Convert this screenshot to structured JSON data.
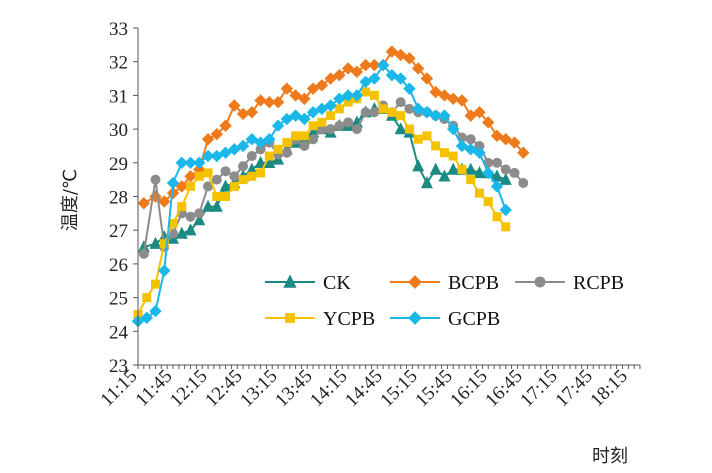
{
  "chart_data": {
    "type": "line",
    "xlabel": "时刻",
    "ylabel": "温度/℃",
    "ylim": [
      23,
      33
    ],
    "yticks": [
      23,
      24,
      25,
      26,
      27,
      28,
      29,
      30,
      31,
      32,
      33
    ],
    "xlim": [
      0,
      86
    ],
    "x_tick_labels": [
      "11:15",
      "11:45",
      "12:15",
      "12:45",
      "13:15",
      "13:45",
      "14:15",
      "14:45",
      "15:15",
      "15:45",
      "16:15",
      "16:45",
      "17:15",
      "17:45",
      "18:15"
    ],
    "x_tick_positions": [
      0,
      6,
      12,
      18,
      24,
      30,
      36,
      42,
      48,
      54,
      60,
      66,
      72,
      78,
      84
    ],
    "grid": false,
    "legend_position": "bottom-center",
    "series": [
      {
        "name": "CK",
        "color": "#1a8a82",
        "marker": "triangle",
        "points": [
          [
            1,
            26.5
          ],
          [
            3,
            26.6
          ],
          [
            4.5,
            26.8
          ],
          [
            6,
            26.75
          ],
          [
            7.5,
            26.9
          ],
          [
            9,
            27.0
          ],
          [
            10.5,
            27.3
          ],
          [
            12,
            27.7
          ],
          [
            13.5,
            27.7
          ],
          [
            15,
            28.3
          ],
          [
            16.5,
            28.4
          ],
          [
            18,
            28.6
          ],
          [
            19.5,
            28.8
          ],
          [
            21,
            29.0
          ],
          [
            22.5,
            29.0
          ],
          [
            24,
            29.1
          ],
          [
            25.5,
            29.4
          ],
          [
            27,
            29.6
          ],
          [
            28.5,
            29.7
          ],
          [
            30,
            29.9
          ],
          [
            31.5,
            30.0
          ],
          [
            33,
            29.9
          ],
          [
            34.5,
            30.1
          ],
          [
            36,
            30.1
          ],
          [
            37.5,
            30.2
          ],
          [
            39,
            30.5
          ],
          [
            40.5,
            30.6
          ],
          [
            42,
            30.6
          ],
          [
            43.5,
            30.4
          ],
          [
            45,
            30.0
          ],
          [
            46.5,
            29.9
          ],
          [
            48,
            28.9
          ],
          [
            49.5,
            28.4
          ],
          [
            51,
            28.8
          ],
          [
            52.5,
            28.6
          ],
          [
            54,
            28.8
          ],
          [
            55.5,
            28.8
          ],
          [
            57,
            28.8
          ],
          [
            58.5,
            28.7
          ],
          [
            60,
            28.7
          ],
          [
            61.5,
            28.6
          ],
          [
            63,
            28.5
          ]
        ]
      },
      {
        "name": "BCPB",
        "color": "#ee7a1c",
        "marker": "diamond",
        "points": [
          [
            1,
            27.8
          ],
          [
            3,
            28.0
          ],
          [
            4.5,
            27.85
          ],
          [
            6,
            28.1
          ],
          [
            7.5,
            28.3
          ],
          [
            9,
            28.6
          ],
          [
            10.5,
            28.8
          ],
          [
            12,
            29.7
          ],
          [
            13.5,
            29.85
          ],
          [
            15,
            30.1
          ],
          [
            16.5,
            30.7
          ],
          [
            18,
            30.45
          ],
          [
            19.5,
            30.5
          ],
          [
            21,
            30.85
          ],
          [
            22.5,
            30.8
          ],
          [
            24,
            30.8
          ],
          [
            25.5,
            31.2
          ],
          [
            27,
            31.0
          ],
          [
            28.5,
            30.9
          ],
          [
            30,
            31.2
          ],
          [
            31.5,
            31.3
          ],
          [
            33,
            31.5
          ],
          [
            34.5,
            31.6
          ],
          [
            36,
            31.8
          ],
          [
            37.5,
            31.7
          ],
          [
            39,
            31.9
          ],
          [
            40.5,
            31.9
          ],
          [
            42,
            31.9
          ],
          [
            43.5,
            32.3
          ],
          [
            45,
            32.2
          ],
          [
            46.5,
            32.1
          ],
          [
            48,
            31.8
          ],
          [
            49.5,
            31.5
          ],
          [
            51,
            31.1
          ],
          [
            52.5,
            31.0
          ],
          [
            54,
            30.9
          ],
          [
            55.5,
            30.85
          ],
          [
            57,
            30.4
          ],
          [
            58.5,
            30.5
          ],
          [
            60,
            30.2
          ],
          [
            61.5,
            29.8
          ],
          [
            63,
            29.7
          ],
          [
            64.5,
            29.6
          ],
          [
            66,
            29.3
          ]
        ]
      },
      {
        "name": "RCPB",
        "color": "#8c8c8c",
        "marker": "circle",
        "points": [
          [
            1,
            26.3
          ],
          [
            3,
            28.5
          ],
          [
            4.5,
            26.5
          ],
          [
            6,
            26.9
          ],
          [
            7.5,
            27.5
          ],
          [
            9,
            27.4
          ],
          [
            10.5,
            27.5
          ],
          [
            12,
            28.3
          ],
          [
            13.5,
            28.5
          ],
          [
            15,
            28.75
          ],
          [
            16.5,
            28.6
          ],
          [
            18,
            28.9
          ],
          [
            19.5,
            29.2
          ],
          [
            21,
            29.4
          ],
          [
            22.5,
            29.6
          ],
          [
            24,
            29.25
          ],
          [
            25.5,
            29.3
          ],
          [
            27,
            29.7
          ],
          [
            28.5,
            29.5
          ],
          [
            30,
            29.7
          ],
          [
            31.5,
            30.0
          ],
          [
            33,
            30.0
          ],
          [
            34.5,
            30.1
          ],
          [
            36,
            30.2
          ],
          [
            37.5,
            30.0
          ],
          [
            39,
            30.5
          ],
          [
            40.5,
            30.5
          ],
          [
            42,
            30.7
          ],
          [
            43.5,
            30.5
          ],
          [
            45,
            30.8
          ],
          [
            46.5,
            30.6
          ],
          [
            48,
            30.5
          ],
          [
            49.5,
            30.5
          ],
          [
            51,
            30.4
          ],
          [
            52.5,
            30.3
          ],
          [
            54,
            30.1
          ],
          [
            55.5,
            29.75
          ],
          [
            57,
            29.7
          ],
          [
            58.5,
            29.5
          ],
          [
            60,
            29.0
          ],
          [
            61.5,
            29.0
          ],
          [
            63,
            28.8
          ],
          [
            64.5,
            28.7
          ],
          [
            66,
            28.4
          ]
        ]
      },
      {
        "name": "YCPB",
        "color": "#f5c200",
        "marker": "square",
        "points": [
          [
            0,
            24.5
          ],
          [
            1.5,
            25.0
          ],
          [
            3,
            25.4
          ],
          [
            4.5,
            26.6
          ],
          [
            6,
            27.2
          ],
          [
            7.5,
            27.7
          ],
          [
            9,
            28.3
          ],
          [
            10.5,
            28.6
          ],
          [
            12,
            28.7
          ],
          [
            13.5,
            28.0
          ],
          [
            15,
            28.0
          ],
          [
            16.5,
            28.3
          ],
          [
            18,
            28.5
          ],
          [
            19.5,
            28.6
          ],
          [
            21,
            28.7
          ],
          [
            22.5,
            29.2
          ],
          [
            24,
            29.4
          ],
          [
            25.5,
            29.6
          ],
          [
            27,
            29.8
          ],
          [
            28.5,
            29.8
          ],
          [
            30,
            30.1
          ],
          [
            31.5,
            30.2
          ],
          [
            33,
            30.4
          ],
          [
            34.5,
            30.6
          ],
          [
            36,
            30.8
          ],
          [
            37.5,
            30.9
          ],
          [
            39,
            31.1
          ],
          [
            40.5,
            31.0
          ],
          [
            42,
            30.6
          ],
          [
            43.5,
            30.5
          ],
          [
            45,
            30.4
          ],
          [
            46.5,
            30.0
          ],
          [
            48,
            29.7
          ],
          [
            49.5,
            29.8
          ],
          [
            51,
            29.5
          ],
          [
            52.5,
            29.3
          ],
          [
            54,
            29.2
          ],
          [
            55.5,
            28.8
          ],
          [
            57,
            28.5
          ],
          [
            58.5,
            28.1
          ],
          [
            60,
            27.85
          ],
          [
            61.5,
            27.4
          ],
          [
            63,
            27.1
          ]
        ]
      },
      {
        "name": "GCPB",
        "color": "#1ab8e8",
        "marker": "diamond",
        "points": [
          [
            0,
            24.3
          ],
          [
            1.5,
            24.4
          ],
          [
            3,
            24.6
          ],
          [
            4.5,
            25.8
          ],
          [
            6,
            28.4
          ],
          [
            7.5,
            29.0
          ],
          [
            9,
            29.0
          ],
          [
            10.5,
            29.0
          ],
          [
            12,
            29.2
          ],
          [
            13.5,
            29.2
          ],
          [
            15,
            29.3
          ],
          [
            16.5,
            29.4
          ],
          [
            18,
            29.5
          ],
          [
            19.5,
            29.7
          ],
          [
            21,
            29.6
          ],
          [
            22.5,
            29.7
          ],
          [
            24,
            30.1
          ],
          [
            25.5,
            30.3
          ],
          [
            27,
            30.4
          ],
          [
            28.5,
            30.3
          ],
          [
            30,
            30.5
          ],
          [
            31.5,
            30.6
          ],
          [
            33,
            30.7
          ],
          [
            34.5,
            30.9
          ],
          [
            36,
            31.0
          ],
          [
            37.5,
            31.0
          ],
          [
            39,
            31.4
          ],
          [
            40.5,
            31.5
          ],
          [
            42,
            31.9
          ],
          [
            43.5,
            31.6
          ],
          [
            45,
            31.5
          ],
          [
            46.5,
            31.2
          ],
          [
            48,
            30.6
          ],
          [
            49.5,
            30.5
          ],
          [
            51,
            30.4
          ],
          [
            52.5,
            30.4
          ],
          [
            54,
            30.0
          ],
          [
            55.5,
            29.5
          ],
          [
            57,
            29.4
          ],
          [
            58.5,
            29.3
          ],
          [
            60,
            28.7
          ],
          [
            61.5,
            28.3
          ],
          [
            63,
            27.6
          ]
        ]
      }
    ]
  }
}
